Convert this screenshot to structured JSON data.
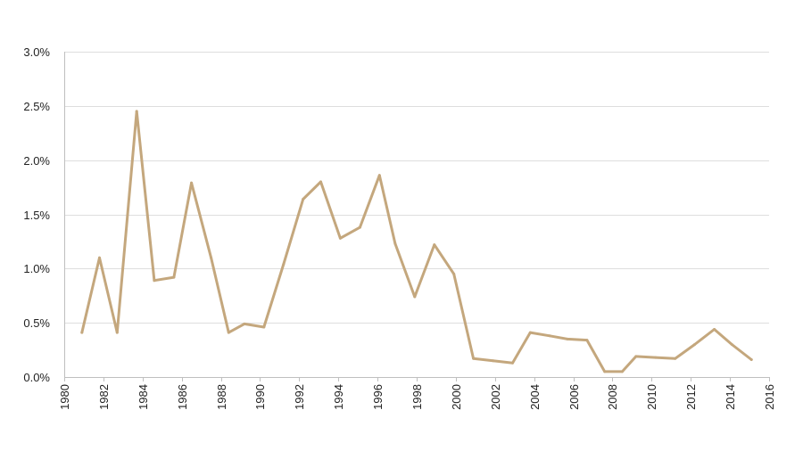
{
  "chart_data": {
    "type": "line",
    "title": "",
    "xlabel": "",
    "ylabel": "",
    "xlim": [
      1980,
      2016
    ],
    "ylim": [
      0,
      3.0
    ],
    "grid": "horizontal",
    "legend": "none",
    "x_ticks": [
      "1980",
      "1982",
      "1984",
      "1986",
      "1988",
      "1990",
      "1992",
      "1994",
      "1996",
      "1998",
      "2000",
      "2002",
      "2004",
      "2006",
      "2008",
      "2010",
      "2012",
      "2014",
      "2016"
    ],
    "y_ticks": [
      "0.0%",
      "0.5%",
      "1.0%",
      "1.5%",
      "2.0%",
      "2.5%",
      "3.0%"
    ],
    "series": [
      {
        "color": "#c4a77d",
        "x": [
          1980.9,
          1981.8,
          1982.7,
          1983.7,
          1984.6,
          1985.6,
          1986.5,
          1987.5,
          1988.4,
          1989.2,
          1990.2,
          1991.2,
          1992.2,
          1993.1,
          1994.1,
          1995.1,
          1996.1,
          1996.9,
          1997.9,
          1998.9,
          1999.9,
          2000.9,
          2001.9,
          2002.9,
          2003.8,
          2004.8,
          2005.7,
          2006.7,
          2007.6,
          2008.5,
          2009.2,
          2010.2,
          2011.2,
          2012.2,
          2013.2,
          2014.1,
          2015.1
        ],
        "y": [
          0.41,
          1.1,
          0.41,
          2.45,
          0.89,
          0.92,
          1.79,
          1.1,
          0.41,
          0.49,
          0.46,
          1.04,
          1.64,
          1.8,
          1.28,
          1.38,
          1.86,
          1.23,
          0.74,
          1.22,
          0.95,
          0.17,
          0.15,
          0.13,
          0.41,
          0.38,
          0.35,
          0.34,
          0.05,
          0.05,
          0.19,
          0.18,
          0.17,
          0.3,
          0.44,
          0.3,
          0.16
        ]
      }
    ]
  }
}
